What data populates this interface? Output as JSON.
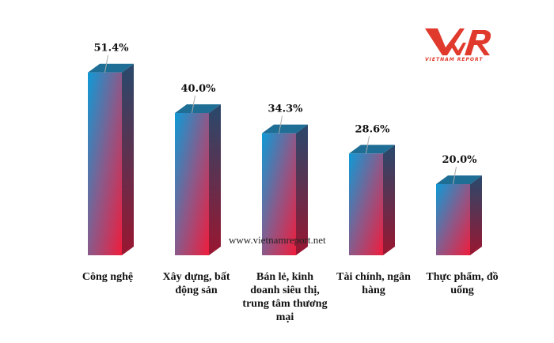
{
  "chart_data": {
    "type": "bar",
    "categories": [
      "Công nghệ",
      "Xây dựng, bất động sản",
      "Bán lẻ, kinh doanh siêu thị, trung tâm thương mại",
      "Tài chính, ngân hàng",
      "Thực phẩm, đồ uống"
    ],
    "values": [
      51.4,
      40.0,
      34.3,
      28.6,
      20.0
    ],
    "data_labels": [
      "51.4%",
      "40.0%",
      "34.3%",
      "28.6%",
      "20.0%"
    ],
    "title": "",
    "xlabel": "",
    "ylabel": "",
    "ylim": [
      0,
      55
    ],
    "grid": false,
    "style": "3d-column gradient",
    "colors": {
      "top": "#0e9ad6",
      "bottom": "#e8203f",
      "side": "#2a4a6e"
    }
  },
  "watermark": "www.vietnamreport.net",
  "logo": {
    "mark": "VNR",
    "text": "VIETNAM REPORT",
    "color": "#e03a2c"
  }
}
